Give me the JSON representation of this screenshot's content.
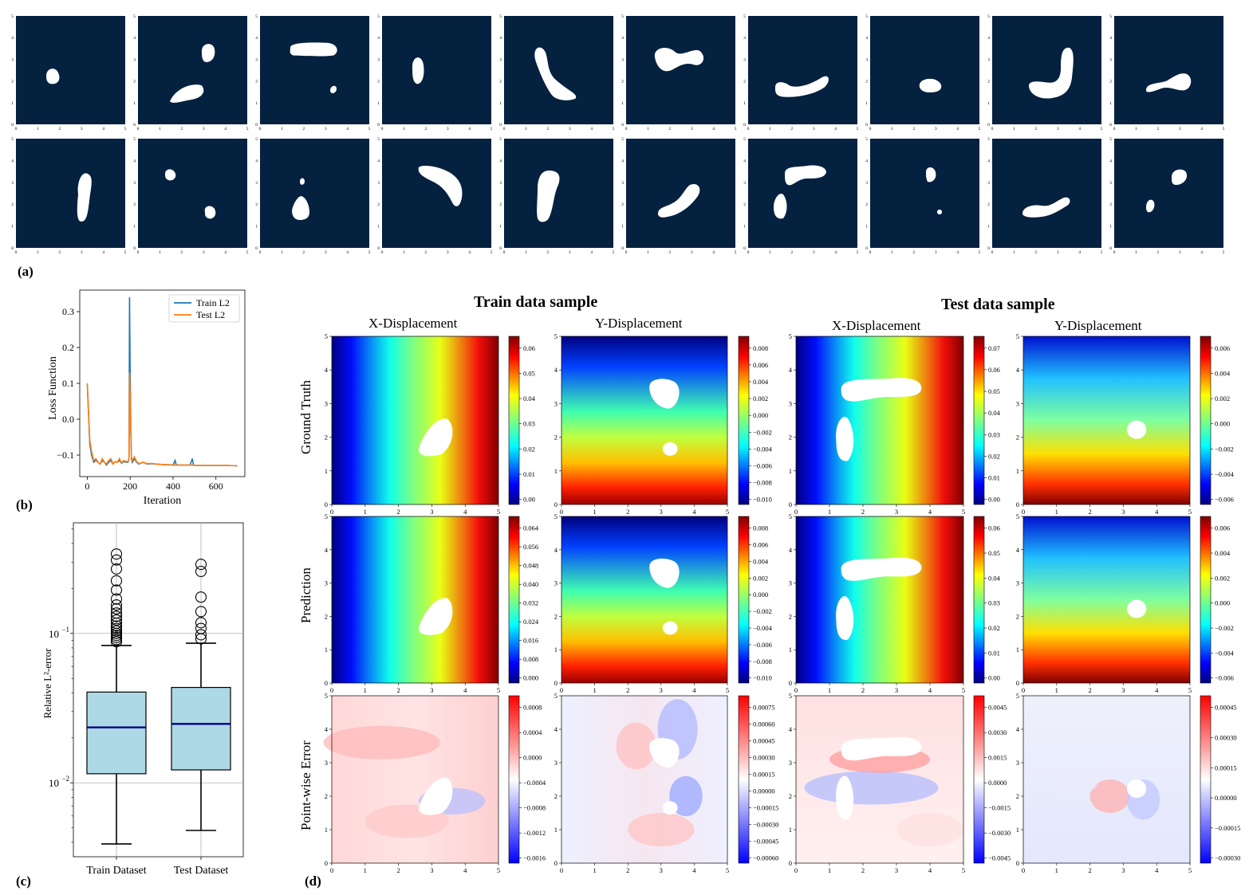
{
  "panel_labels": {
    "a": "(a)",
    "b": "(b)",
    "c": "(c)",
    "d": "(d)"
  },
  "shape_axis_ticks": [
    "0",
    "1",
    "2",
    "3",
    "4",
    "5"
  ],
  "section_titles": {
    "train": "Train  data sample",
    "test": "Test data sample"
  },
  "column_titles": [
    "X-Displacement",
    "Y-Displacement",
    "X-Displacement",
    "Y-Displacement"
  ],
  "row_titles": [
    "Ground Truth",
    "Prediction",
    "Point-wise Error"
  ],
  "colors": {
    "shape_bg": "#04213f",
    "train_line": "#1f77b4",
    "test_line": "#ff7f0e",
    "box_fill": "#add8e6",
    "median": "#00008b"
  },
  "chart_data": [
    {
      "id": "loss",
      "type": "line",
      "xlabel": "Iteration",
      "ylabel": "Loss Function",
      "xticks": [
        0,
        200,
        400,
        600
      ],
      "yticks": [
        -0.1,
        0.0,
        0.1,
        0.2,
        0.3
      ],
      "xlim": [
        -35,
        735
      ],
      "ylim": [
        -0.16,
        0.36
      ],
      "legend_position": "top-right",
      "series": [
        {
          "name": "Train L2",
          "x": [
            0,
            12,
            20,
            30,
            40,
            50,
            60,
            70,
            80,
            90,
            100,
            110,
            120,
            130,
            140,
            150,
            160,
            170,
            180,
            190,
            195,
            197,
            200,
            203,
            206,
            210,
            220,
            230,
            240,
            260,
            280,
            300,
            320,
            340,
            360,
            380,
            400,
            410,
            415,
            420,
            440,
            460,
            480,
            490,
            495,
            500,
            520,
            560,
            600,
            650,
            700
          ],
          "y": [
            0.1,
            -0.07,
            -0.1,
            -0.12,
            -0.115,
            -0.12,
            -0.125,
            -0.115,
            -0.12,
            -0.128,
            -0.12,
            -0.115,
            -0.125,
            -0.118,
            -0.12,
            -0.115,
            -0.123,
            -0.118,
            -0.12,
            -0.12,
            -0.11,
            0.34,
            0.13,
            -0.02,
            -0.11,
            -0.12,
            -0.11,
            -0.12,
            -0.125,
            -0.12,
            -0.125,
            -0.124,
            -0.125,
            -0.126,
            -0.127,
            -0.127,
            -0.128,
            -0.115,
            -0.128,
            -0.128,
            -0.128,
            -0.128,
            -0.128,
            -0.11,
            -0.128,
            -0.129,
            -0.129,
            -0.129,
            -0.129,
            -0.129,
            -0.13
          ]
        },
        {
          "name": "Test L2",
          "x": [
            0,
            12,
            20,
            30,
            40,
            50,
            60,
            70,
            80,
            90,
            100,
            110,
            120,
            130,
            140,
            150,
            160,
            170,
            180,
            190,
            195,
            197,
            200,
            203,
            206,
            210,
            220,
            230,
            240,
            260,
            280,
            300,
            320,
            340,
            360,
            380,
            400,
            420,
            440,
            460,
            480,
            500,
            520,
            560,
            600,
            650,
            700
          ],
          "y": [
            0.1,
            -0.06,
            -0.09,
            -0.115,
            -0.11,
            -0.12,
            -0.125,
            -0.11,
            -0.12,
            -0.125,
            -0.115,
            -0.11,
            -0.125,
            -0.118,
            -0.12,
            -0.11,
            -0.122,
            -0.115,
            -0.118,
            -0.118,
            -0.11,
            0.13,
            0.06,
            -0.03,
            -0.105,
            -0.115,
            -0.105,
            -0.118,
            -0.124,
            -0.12,
            -0.124,
            -0.123,
            -0.125,
            -0.126,
            -0.127,
            -0.127,
            -0.128,
            -0.128,
            -0.128,
            -0.128,
            -0.128,
            -0.129,
            -0.129,
            -0.129,
            -0.129,
            -0.129,
            -0.13
          ]
        }
      ]
    },
    {
      "id": "boxplot",
      "type": "box",
      "ylabel": "Relative $L^2$-error",
      "yscale": "log",
      "ylim": [
        0.0032,
        0.55
      ],
      "ytick_labels": [
        {
          "value": 0.1,
          "base": "10",
          "exp": "−1"
        },
        {
          "value": 0.01,
          "base": "10",
          "exp": "−2"
        }
      ],
      "categories": [
        "Train Dataset",
        "Test Dataset"
      ],
      "boxes": [
        {
          "whislo": 0.0039,
          "q1": 0.0115,
          "median": 0.0235,
          "q3": 0.0405,
          "whishi": 0.083,
          "fliers": [
            0.088,
            0.091,
            0.094,
            0.097,
            0.1,
            0.104,
            0.108,
            0.112,
            0.117,
            0.123,
            0.13,
            0.137,
            0.146,
            0.155,
            0.17,
            0.195,
            0.225,
            0.27,
            0.31,
            0.34
          ]
        },
        {
          "whislo": 0.0048,
          "q1": 0.0122,
          "median": 0.0248,
          "q3": 0.0435,
          "whishi": 0.086,
          "fliers": [
            0.092,
            0.098,
            0.108,
            0.118,
            0.14,
            0.175,
            0.26,
            0.29
          ]
        }
      ]
    },
    {
      "id": "field-maps",
      "type": "heatmap",
      "axis_ticks": [
        0,
        1,
        2,
        3,
        4,
        5
      ],
      "panels": [
        {
          "row": "Ground Truth",
          "col": "X-Displacement (train)",
          "cmap": "jet",
          "cbar_ticks": [
            "0.06",
            "0.05",
            "0.04",
            "0.03",
            "0.02",
            "0.01",
            "0.00"
          ]
        },
        {
          "row": "Ground Truth",
          "col": "Y-Displacement (train)",
          "cmap": "jet",
          "cbar_ticks": [
            "0.008",
            "0.006",
            "0.004",
            "0.002",
            "0.000",
            "−0.002",
            "−0.004",
            "−0.006",
            "−0.008",
            "−0.010"
          ]
        },
        {
          "row": "Ground Truth",
          "col": "X-Displacement (test)",
          "cmap": "jet",
          "cbar_ticks": [
            "0.07",
            "0.06",
            "0.05",
            "0.04",
            "0.03",
            "0.02",
            "0.01",
            "0.00"
          ]
        },
        {
          "row": "Ground Truth",
          "col": "Y-Displacement (test)",
          "cmap": "jet",
          "cbar_ticks": [
            "0.006",
            "0.004",
            "0.002",
            "0.000",
            "−0.002",
            "−0.004",
            "−0.006"
          ]
        },
        {
          "row": "Prediction",
          "col": "X-Displacement (train)",
          "cmap": "jet",
          "cbar_ticks": [
            "0.064",
            "0.056",
            "0.048",
            "0.040",
            "0.032",
            "0.024",
            "0.016",
            "0.008",
            "0.000"
          ]
        },
        {
          "row": "Prediction",
          "col": "Y-Displacement (train)",
          "cmap": "jet",
          "cbar_ticks": [
            "0.008",
            "0.006",
            "0.004",
            "0.002",
            "0.000",
            "−0.002",
            "−0.004",
            "−0.006",
            "−0.008",
            "−0.010"
          ]
        },
        {
          "row": "Prediction",
          "col": "X-Displacement (test)",
          "cmap": "jet",
          "cbar_ticks": [
            "0.06",
            "0.05",
            "0.04",
            "0.03",
            "0.02",
            "0.01",
            "0.00"
          ]
        },
        {
          "row": "Prediction",
          "col": "Y-Displacement (test)",
          "cmap": "jet",
          "cbar_ticks": [
            "0.006",
            "0.004",
            "0.002",
            "0.000",
            "−0.002",
            "−0.004",
            "−0.006"
          ]
        },
        {
          "row": "Point-wise Error",
          "col": "X-Displacement (train)",
          "cmap": "bwr",
          "cbar_ticks": [
            "0.0008",
            "0.0004",
            "0.0000",
            "−0.0004",
            "−0.0008",
            "−0.0012",
            "−0.0016"
          ]
        },
        {
          "row": "Point-wise Error",
          "col": "Y-Displacement (train)",
          "cmap": "bwr",
          "cbar_ticks": [
            "0.00075",
            "0.00060",
            "0.00045",
            "0.00030",
            "0.00015",
            "0.00000",
            "−0.00015",
            "−0.00030",
            "−0.00045",
            "−0.00060"
          ]
        },
        {
          "row": "Point-wise Error",
          "col": "X-Displacement (test)",
          "cmap": "bwr",
          "cbar_ticks": [
            "0.0045",
            "0.0030",
            "0.0015",
            "0.0000",
            "−0.0015",
            "−0.0030",
            "−0.0045"
          ]
        },
        {
          "row": "Point-wise Error",
          "col": "Y-Displacement (test)",
          "cmap": "bwr",
          "cbar_ticks": [
            "0.00045",
            "0.00030",
            "0.00015",
            "0.00000",
            "−0.00015",
            "−0.00030"
          ]
        }
      ]
    }
  ]
}
